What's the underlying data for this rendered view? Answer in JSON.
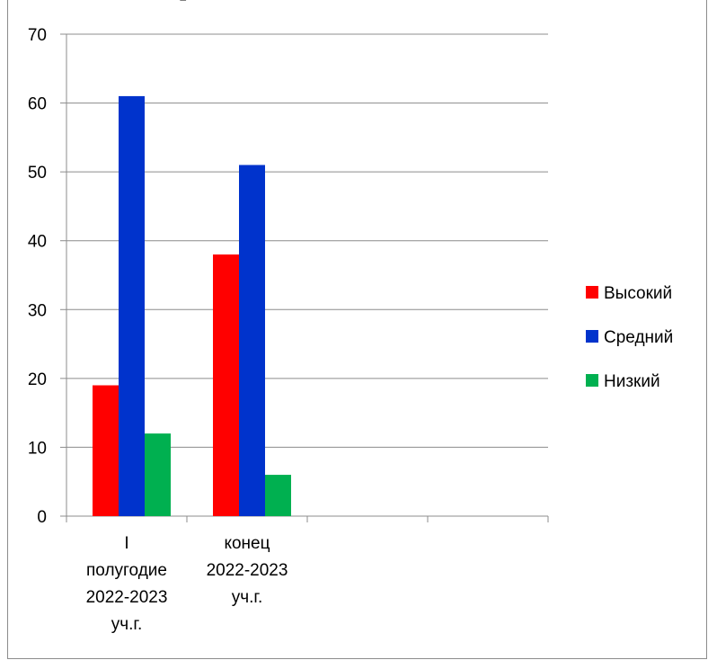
{
  "chart_data": {
    "type": "bar",
    "title_fragment": "р",
    "categories": [
      [
        "I",
        "полугодие",
        "2022-2023",
        "уч.г."
      ],
      [
        "конец",
        "2022-2023",
        "уч.г."
      ],
      [],
      []
    ],
    "series": [
      {
        "name": "Высокий",
        "values": [
          19,
          38,
          null,
          null
        ],
        "color": "#ff0000"
      },
      {
        "name": "Средний",
        "values": [
          61,
          51,
          null,
          null
        ],
        "color": "#0033cc"
      },
      {
        "name": "Низкий",
        "values": [
          12,
          6,
          null,
          null
        ],
        "color": "#00b050"
      }
    ],
    "ylim": [
      0,
      70
    ],
    "yticks": [
      0,
      10,
      20,
      30,
      40,
      50,
      60,
      70
    ],
    "grid": true,
    "legend_position": "right",
    "gridline_color": "#8c8c8c"
  }
}
